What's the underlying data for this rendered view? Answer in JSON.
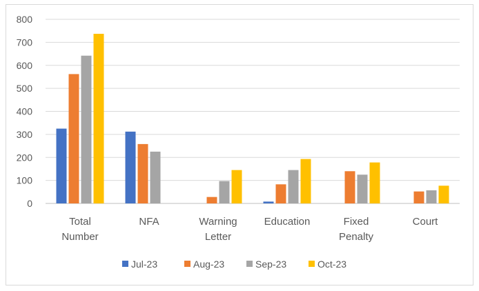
{
  "chart_data": {
    "type": "bar",
    "title": "",
    "xlabel": "",
    "ylabel": "",
    "categories": [
      [
        "Total",
        "Number"
      ],
      [
        "NFA"
      ],
      [
        "Warning",
        "Letter"
      ],
      [
        "Education"
      ],
      [
        "Fixed",
        "Penalty"
      ],
      [
        "Court"
      ]
    ],
    "series": [
      {
        "name": "Jul-23",
        "color": "#4472C4",
        "values": [
          325,
          312,
          0,
          8,
          0,
          0
        ]
      },
      {
        "name": "Aug-23",
        "color": "#ED7D31",
        "values": [
          562,
          258,
          28,
          83,
          140,
          52
        ]
      },
      {
        "name": "Sep-23",
        "color": "#A5A5A5",
        "values": [
          642,
          225,
          97,
          145,
          125,
          57
        ]
      },
      {
        "name": "Oct-23",
        "color": "#FFC000",
        "values": [
          737,
          0,
          145,
          193,
          178,
          77
        ]
      }
    ],
    "ylim": [
      0,
      800
    ],
    "yticks": [
      0,
      100,
      200,
      300,
      400,
      500,
      600,
      700,
      800
    ],
    "grid": true,
    "legend_position": "bottom"
  }
}
